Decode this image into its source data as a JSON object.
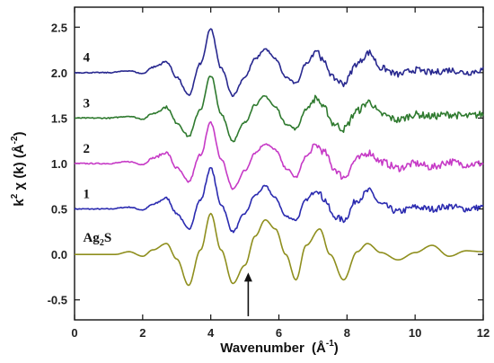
{
  "chart_data": {
    "type": "line",
    "title": "",
    "xlabel": "Wavenumber",
    "xlabel_unit": "(Å",
    "xlabel_unit_exp": "-1",
    "xlabel_unit_close": ")",
    "ylabel_k": "k",
    "ylabel_k_exp": "2",
    "ylabel_rest": " χ (k) (Å",
    "ylabel_unit_exp": "-2",
    "ylabel_close": ")",
    "xlim": [
      0,
      12
    ],
    "ylim": [
      -0.72,
      2.72
    ],
    "xticks": [
      0,
      2,
      4,
      6,
      8,
      10,
      12
    ],
    "yticks": [
      -0.5,
      0.0,
      0.5,
      1.0,
      1.5,
      2.0,
      2.5
    ],
    "ytick_labels": [
      "-0.5",
      "0.0",
      "0.5",
      "1.0",
      "1.5",
      "2.0",
      "2.5"
    ],
    "grid": false,
    "legend": "none",
    "annotation": {
      "type": "arrow",
      "x": 5.1,
      "y_from": -0.68,
      "y_to": -0.2
    },
    "series": [
      {
        "label": "Ag",
        "label_sub": "2",
        "label_tail": "S",
        "label_x": 0.25,
        "label_y": 0.14,
        "offset": 0.0,
        "color": "#8f8f1e",
        "noise": 0.0,
        "x": [
          0,
          0.8,
          1.2,
          1.6,
          2.0,
          2.3,
          2.7,
          3.0,
          3.35,
          3.7,
          4.0,
          4.3,
          4.65,
          5.0,
          5.3,
          5.6,
          5.9,
          6.2,
          6.5,
          6.8,
          7.2,
          7.5,
          7.9,
          8.3,
          8.6,
          9.0,
          9.5,
          10.0,
          10.5,
          11.0,
          11.5,
          12.0
        ],
        "y": [
          0,
          0,
          0.0,
          0.03,
          -0.02,
          0.05,
          0.12,
          -0.05,
          -0.34,
          0.05,
          0.45,
          0.05,
          -0.32,
          -0.12,
          0.2,
          0.38,
          0.28,
          0.0,
          -0.28,
          0.1,
          0.28,
          0.0,
          -0.28,
          0.03,
          0.12,
          0.02,
          -0.06,
          0.02,
          0.1,
          -0.02,
          0.04,
          0.03
        ]
      },
      {
        "label": "1",
        "label_x": 0.25,
        "label_y": 0.62,
        "offset": 0.5,
        "color": "#2b2bb0",
        "noise": 0.035,
        "x": [
          0,
          1.0,
          1.6,
          2.0,
          2.3,
          2.7,
          3.0,
          3.35,
          3.7,
          4.0,
          4.3,
          4.65,
          5.0,
          5.3,
          5.6,
          5.9,
          6.2,
          6.5,
          6.8,
          7.1,
          7.35,
          7.6,
          7.9,
          8.3,
          8.65,
          9.0,
          9.5,
          10.0,
          10.5,
          11.0,
          11.5,
          12.0
        ],
        "y": [
          0,
          0,
          0.02,
          -0.01,
          0.05,
          0.12,
          -0.05,
          -0.22,
          0.1,
          0.45,
          0.05,
          -0.25,
          -0.05,
          0.15,
          0.25,
          0.12,
          -0.08,
          -0.12,
          0.1,
          0.22,
          0.1,
          -0.08,
          -0.12,
          0.1,
          0.2,
          0.05,
          -0.03,
          0.02,
          0.0,
          0.03,
          0.0,
          0.02
        ]
      },
      {
        "label": "2",
        "label_x": 0.25,
        "label_y": 1.12,
        "offset": 1.0,
        "color": "#c63ac6",
        "noise": 0.04,
        "x": [
          0,
          1.0,
          1.6,
          2.0,
          2.3,
          2.7,
          3.0,
          3.35,
          3.7,
          4.0,
          4.3,
          4.65,
          5.0,
          5.3,
          5.6,
          5.9,
          6.2,
          6.5,
          6.8,
          7.1,
          7.35,
          7.6,
          7.9,
          8.3,
          8.65,
          9.0,
          9.5,
          10.0,
          10.5,
          11.0,
          11.5,
          12.0
        ],
        "y": [
          0,
          0,
          0.02,
          -0.01,
          0.06,
          0.12,
          -0.05,
          -0.2,
          0.1,
          0.45,
          0.05,
          -0.28,
          -0.08,
          0.12,
          0.22,
          0.15,
          -0.05,
          -0.15,
          0.08,
          0.2,
          0.12,
          -0.05,
          -0.15,
          0.05,
          0.12,
          0.02,
          -0.05,
          0.0,
          -0.04,
          0.02,
          -0.01,
          0.0
        ]
      },
      {
        "label": "3",
        "label_x": 0.25,
        "label_y": 1.62,
        "offset": 1.5,
        "color": "#2f7a2f",
        "noise": 0.04,
        "x": [
          0,
          1.0,
          1.6,
          2.0,
          2.3,
          2.7,
          3.0,
          3.35,
          3.7,
          4.0,
          4.3,
          4.65,
          5.0,
          5.3,
          5.6,
          5.9,
          6.2,
          6.5,
          6.8,
          7.1,
          7.35,
          7.6,
          7.9,
          8.3,
          8.65,
          9.0,
          9.5,
          10.0,
          10.5,
          11.0,
          11.5,
          12.0
        ],
        "y": [
          0,
          0,
          0.02,
          -0.01,
          0.05,
          0.12,
          -0.05,
          -0.2,
          0.1,
          0.47,
          0.05,
          -0.25,
          -0.05,
          0.15,
          0.24,
          0.12,
          -0.06,
          -0.12,
          0.1,
          0.22,
          0.1,
          -0.06,
          -0.12,
          0.08,
          0.18,
          0.04,
          -0.02,
          0.04,
          0.02,
          0.04,
          0.02,
          0.04
        ]
      },
      {
        "label": "4",
        "label_x": 0.25,
        "label_y": 2.12,
        "offset": 2.0,
        "color": "#28288f",
        "noise": 0.035,
        "x": [
          0,
          1.0,
          1.6,
          2.0,
          2.3,
          2.7,
          3.0,
          3.35,
          3.7,
          4.0,
          4.3,
          4.65,
          5.0,
          5.3,
          5.6,
          5.9,
          6.2,
          6.5,
          6.8,
          7.1,
          7.35,
          7.6,
          7.9,
          8.3,
          8.65,
          9.0,
          9.5,
          10.0,
          10.5,
          11.0,
          11.5,
          12.0
        ],
        "y": [
          0,
          0,
          0.02,
          -0.01,
          0.06,
          0.12,
          -0.05,
          -0.25,
          0.1,
          0.48,
          0.05,
          -0.25,
          -0.05,
          0.15,
          0.26,
          0.15,
          -0.05,
          -0.12,
          0.1,
          0.25,
          0.1,
          -0.06,
          -0.12,
          0.1,
          0.22,
          0.05,
          -0.02,
          0.03,
          0.0,
          0.03,
          0.0,
          0.03
        ]
      }
    ]
  }
}
